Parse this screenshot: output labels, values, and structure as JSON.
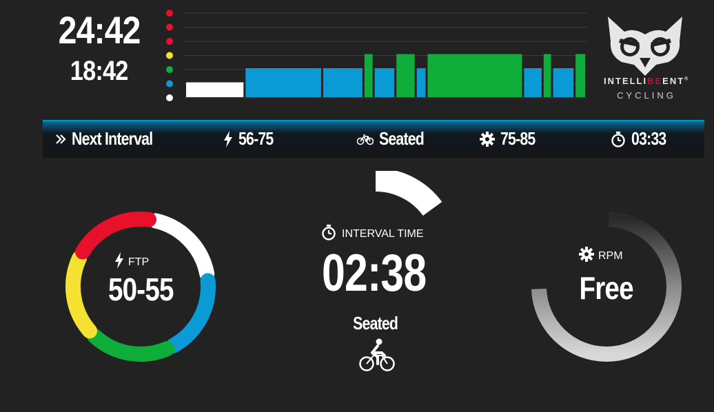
{
  "clock": {
    "total": "24:42",
    "remaining": "18:42"
  },
  "profile": {
    "zone_colors": [
      "#e8102a",
      "#e8102a",
      "#e8102a",
      "#f4e132",
      "#0fae3a",
      "#0a9bd6",
      "#ffffff"
    ],
    "bars": [
      {
        "zone": 1,
        "duration": 82,
        "color": "#ffffff"
      },
      {
        "zone": 2,
        "duration": 107,
        "color": "#0a9bd6"
      },
      {
        "zone": 2,
        "duration": 57,
        "color": "#0a9bd6"
      },
      {
        "zone": 3,
        "duration": 14,
        "color": "#0fae3a"
      },
      {
        "zone": 2,
        "duration": 30,
        "color": "#0a9bd6"
      },
      {
        "zone": 3,
        "duration": 28,
        "color": "#0fae3a"
      },
      {
        "zone": 2,
        "duration": 15,
        "color": "#0a9bd6"
      },
      {
        "zone": 3,
        "duration": 133,
        "color": "#0fae3a"
      },
      {
        "zone": 2,
        "duration": 27,
        "color": "#0a9bd6"
      },
      {
        "zone": 3,
        "duration": 13,
        "color": "#0fae3a"
      },
      {
        "zone": 2,
        "duration": 31,
        "color": "#0a9bd6"
      },
      {
        "zone": 3,
        "duration": 16,
        "color": "#0fae3a"
      }
    ]
  },
  "logo": {
    "text_main_left": "INTELLI",
    "text_main_red": "BE",
    "text_main_right": "ENT",
    "trademark": "®",
    "text_sub": "CYCLING"
  },
  "next_interval": {
    "title": "Next Interval",
    "power": "56-75",
    "position": "Seated",
    "cadence": "75-85",
    "duration": "03:33"
  },
  "ftp": {
    "label": "FTP",
    "value": "50-55",
    "segments": [
      {
        "name": "white",
        "color": "#ffffff"
      },
      {
        "name": "blue",
        "color": "#0a9bd6"
      },
      {
        "name": "green",
        "color": "#0fae3a"
      },
      {
        "name": "yellow",
        "color": "#f4e132"
      },
      {
        "name": "red",
        "color": "#e8102a"
      }
    ]
  },
  "interval": {
    "label": "INTERVAL TIME",
    "value": "02:38",
    "position": "Seated",
    "progress": 0.15
  },
  "rpm": {
    "label": "RPM",
    "value": "Free"
  },
  "icons": {
    "next": "double-chevron-icon",
    "power": "lightning-bolt-icon",
    "position": "bicycle-icon",
    "cadence": "gear-icon",
    "timer": "stopwatch-icon"
  }
}
